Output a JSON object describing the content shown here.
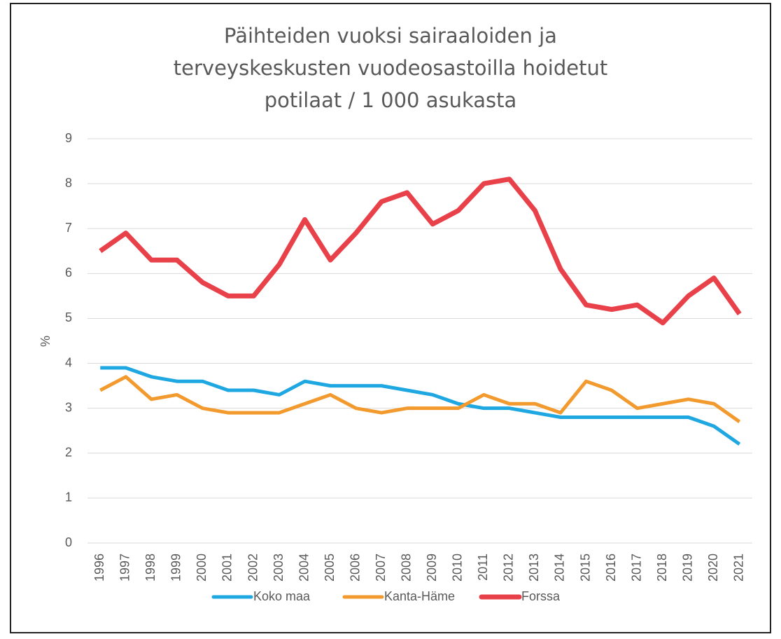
{
  "chart_data": {
    "type": "line",
    "title": "Päihteiden vuoksi sairaaloiden ja\nterveyskeskusten vuodeosastoilla hoidetut\npotilaat / 1 000 asukasta",
    "y_label": "%",
    "categories": [
      "1996",
      "1997",
      "1998",
      "1999",
      "2000",
      "2001",
      "2002",
      "2003",
      "2004",
      "2005",
      "2006",
      "2007",
      "2008",
      "2009",
      "2010",
      "2011",
      "2012",
      "2013",
      "2014",
      "2015",
      "2016",
      "2017",
      "2018",
      "2019",
      "2020",
      "2021"
    ],
    "series": [
      {
        "name": "Koko maa",
        "color": "#1ea7e1",
        "values": [
          3.9,
          3.9,
          3.7,
          3.6,
          3.6,
          3.4,
          3.4,
          3.3,
          3.6,
          3.5,
          3.5,
          3.5,
          3.4,
          3.3,
          3.1,
          3.0,
          3.0,
          2.9,
          2.8,
          2.8,
          2.8,
          2.8,
          2.8,
          2.8,
          2.6,
          2.2
        ]
      },
      {
        "name": "Kanta-Häme",
        "color": "#f29a2e",
        "values": [
          3.4,
          3.7,
          3.2,
          3.3,
          3.0,
          2.9,
          2.9,
          2.9,
          3.1,
          3.3,
          3.0,
          2.9,
          3.0,
          3.0,
          3.0,
          3.3,
          3.1,
          3.1,
          2.9,
          3.6,
          3.4,
          3.0,
          3.1,
          3.2,
          3.1,
          2.7
        ]
      },
      {
        "name": "Forssa",
        "color": "#e8414a",
        "values": [
          6.5,
          6.9,
          6.3,
          6.3,
          5.8,
          5.5,
          5.5,
          6.2,
          7.2,
          6.3,
          6.9,
          7.6,
          7.8,
          7.1,
          7.4,
          8.0,
          8.1,
          7.4,
          6.1,
          5.3,
          5.2,
          5.3,
          4.9,
          5.5,
          5.9,
          5.1
        ]
      }
    ],
    "ylim": [
      0,
      9
    ],
    "yticks": [
      0,
      1,
      2,
      3,
      4,
      5,
      6,
      7,
      8,
      9
    ],
    "grid": true,
    "legend": "bottom"
  }
}
